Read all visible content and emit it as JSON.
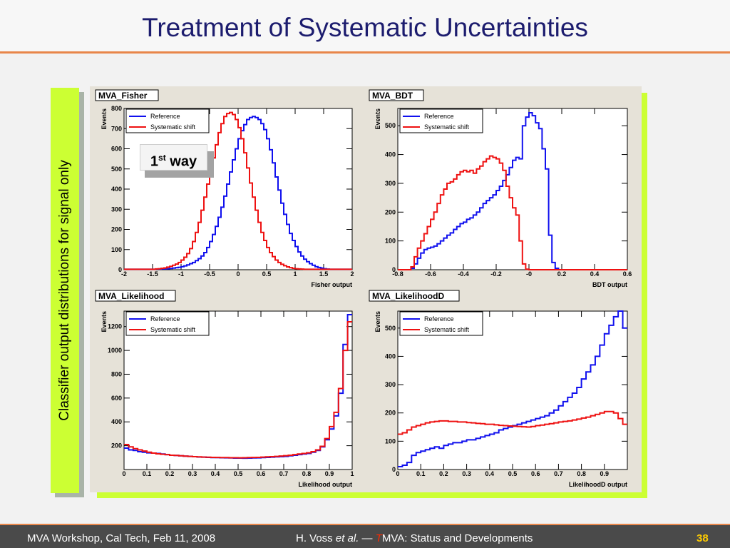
{
  "slide": {
    "title": "Treatment of Systematic Uncertainties",
    "side_label": "Classifier output distributions for signal only",
    "badge": {
      "main": "1",
      "sup": "st",
      "rest": " way"
    }
  },
  "footer": {
    "left": "MVA Workshop, Cal Tech, Feb 11, 2008",
    "middle_a": "H. Voss ",
    "middle_etal": "et al.",
    "middle_b": " — ",
    "middle_t": "T",
    "middle_c": "MVA: Status and Developments",
    "page": "38"
  },
  "colors": {
    "reference": "#1010ee",
    "shift": "#ee1111",
    "accent": "#e8864a",
    "banner": "#ccff33"
  },
  "chart_data": [
    {
      "type": "line",
      "title": "MVA_Fisher",
      "xlabel": "Fisher output",
      "ylabel": "Events",
      "xlim": [
        -2,
        2
      ],
      "ylim": [
        0,
        800
      ],
      "xticks": [
        -2,
        -1.5,
        -1,
        -0.5,
        0,
        0.5,
        1,
        1.5,
        2
      ],
      "xtick_labels": [
        "-2",
        "-1.5",
        "-1",
        "-0.5",
        "0",
        "0.5",
        "1",
        "1.5",
        "2"
      ],
      "yticks": [
        0,
        100,
        200,
        300,
        400,
        500,
        600,
        700,
        800
      ],
      "ytick_labels": [
        "0",
        "100",
        "200",
        "300",
        "400",
        "500",
        "600",
        "700",
        "800"
      ],
      "legend": [
        "Reference",
        "Systematic shift"
      ],
      "x_start": -2.0,
      "bin_width": 0.05,
      "series": [
        {
          "name": "Reference",
          "values": [
            2,
            2,
            2,
            2,
            2,
            2,
            2,
            2,
            2,
            2,
            2,
            3,
            3,
            4,
            4,
            5,
            6,
            8,
            10,
            12,
            15,
            19,
            24,
            30,
            36,
            45,
            55,
            68,
            85,
            110,
            140,
            175,
            215,
            260,
            310,
            365,
            425,
            485,
            545,
            600,
            650,
            690,
            720,
            745,
            755,
            760,
            755,
            745,
            725,
            695,
            650,
            595,
            530,
            460,
            395,
            330,
            275,
            225,
            180,
            145,
            115,
            88,
            68,
            52,
            40,
            30,
            22,
            15,
            11,
            8,
            5,
            3,
            2,
            2,
            2,
            2,
            2,
            2,
            2,
            2
          ]
        },
        {
          "name": "Systematic shift",
          "values": [
            2,
            2,
            2,
            2,
            2,
            2,
            2,
            2,
            2,
            2,
            2,
            4,
            5,
            7,
            9,
            13,
            17,
            22,
            28,
            36,
            48,
            62,
            80,
            105,
            140,
            185,
            235,
            295,
            360,
            425,
            490,
            555,
            620,
            680,
            725,
            760,
            775,
            780,
            770,
            745,
            705,
            650,
            580,
            505,
            430,
            360,
            295,
            235,
            185,
            145,
            110,
            85,
            65,
            48,
            36,
            27,
            20,
            14,
            10,
            7,
            5,
            4,
            3,
            2,
            2,
            2,
            2,
            2,
            2,
            2,
            2,
            2,
            2,
            2,
            2,
            2,
            2,
            2,
            2,
            2
          ]
        }
      ],
      "annotation_ticks": []
    },
    {
      "type": "line",
      "title": "MVA_BDT",
      "xlabel": "BDT output",
      "ylabel": "Events",
      "xlim": [
        -0.8,
        0.6
      ],
      "ylim": [
        0,
        560
      ],
      "xticks": [
        -0.8,
        -0.6,
        -0.4,
        -0.2,
        0,
        0.2,
        0.4,
        0.6
      ],
      "xtick_labels": [
        "-0.8",
        "-0.6",
        "-0.4",
        "-0.2",
        "-0",
        "0.2",
        "0.4",
        "0.6"
      ],
      "yticks": [
        0,
        100,
        200,
        300,
        400,
        500
      ],
      "ytick_labels": [
        "0",
        "100",
        "200",
        "300",
        "400",
        "500"
      ],
      "legend": [
        "Reference",
        "Systematic shift"
      ],
      "x_start": -0.8,
      "bin_width": 0.02,
      "series": [
        {
          "name": "Reference",
          "values": [
            0,
            0,
            0,
            0,
            5,
            20,
            40,
            58,
            70,
            75,
            78,
            82,
            90,
            100,
            110,
            120,
            128,
            140,
            150,
            160,
            165,
            175,
            180,
            190,
            200,
            215,
            230,
            240,
            250,
            260,
            275,
            290,
            310,
            330,
            355,
            380,
            390,
            385,
            500,
            530,
            545,
            535,
            510,
            490,
            420,
            350,
            120,
            25,
            5,
            0,
            0,
            0,
            0,
            0,
            0,
            0,
            0,
            0,
            0,
            0,
            0,
            0,
            0,
            0,
            0,
            0,
            0,
            0,
            0,
            0
          ]
        },
        {
          "name": "Systematic shift",
          "values": [
            0,
            0,
            0,
            0,
            10,
            45,
            75,
            100,
            125,
            150,
            175,
            200,
            230,
            260,
            280,
            300,
            305,
            315,
            330,
            340,
            345,
            340,
            345,
            335,
            350,
            360,
            375,
            385,
            395,
            390,
            385,
            370,
            345,
            290,
            250,
            215,
            190,
            100,
            20,
            2,
            0,
            0,
            0,
            0,
            0,
            0,
            0,
            0,
            0,
            0,
            0,
            0,
            0,
            0,
            0,
            0,
            0,
            0,
            0,
            0,
            0,
            0,
            0,
            0,
            0,
            0,
            0,
            0,
            0,
            0
          ]
        }
      ],
      "annotation_ticks": []
    },
    {
      "type": "line",
      "title": "MVA_Likelihood",
      "xlabel": "Likelihood output",
      "ylabel": "Events",
      "xlim": [
        0,
        1
      ],
      "ylim": [
        0,
        1330
      ],
      "xticks": [
        0,
        0.1,
        0.2,
        0.3,
        0.4,
        0.5,
        0.6,
        0.7,
        0.8,
        0.9,
        1
      ],
      "xtick_labels": [
        "0",
        "0.1",
        "0.2",
        "0.3",
        "0.4",
        "0.5",
        "0.6",
        "0.7",
        "0.8",
        "0.9",
        "1"
      ],
      "yticks": [
        200,
        400,
        600,
        800,
        1000,
        1200
      ],
      "ytick_labels": [
        "200",
        "400",
        "600",
        "800",
        "1000",
        "1200"
      ],
      "legend": [
        "Reference",
        "Systematic shift"
      ],
      "x_start": 0,
      "bin_width": 0.02,
      "series": [
        {
          "name": "Reference",
          "values": [
            180,
            165,
            160,
            150,
            145,
            140,
            138,
            135,
            130,
            125,
            120,
            118,
            115,
            112,
            110,
            108,
            105,
            104,
            102,
            100,
            100,
            99,
            98,
            97,
            96,
            96,
            95,
            96,
            97,
            98,
            100,
            102,
            104,
            106,
            108,
            110,
            115,
            120,
            125,
            130,
            135,
            145,
            160,
            190,
            250,
            340,
            450,
            640,
            1050,
            1300
          ]
        },
        {
          "name": "Systematic shift",
          "values": [
            210,
            190,
            175,
            165,
            155,
            145,
            138,
            132,
            128,
            125,
            120,
            118,
            115,
            112,
            110,
            108,
            106,
            104,
            103,
            102,
            101,
            100,
            100,
            99,
            99,
            98,
            99,
            100,
            101,
            102,
            104,
            106,
            108,
            110,
            113,
            116,
            120,
            125,
            130,
            135,
            140,
            150,
            165,
            195,
            260,
            360,
            480,
            680,
            1000,
            1240
          ]
        }
      ],
      "annotation_ticks": []
    },
    {
      "type": "line",
      "title": "MVA_LikelihoodD",
      "xlabel": "LikelihoodD output",
      "ylabel": "Events",
      "xlim": [
        0,
        1
      ],
      "ylim": [
        0,
        560
      ],
      "xticks": [
        0,
        0.1,
        0.2,
        0.3,
        0.4,
        0.5,
        0.6,
        0.7,
        0.8,
        0.9
      ],
      "xtick_labels": [
        "0",
        "0.1",
        "0.2",
        "0.3",
        "0.4",
        "0.5",
        "0.6",
        "0.7",
        "0.8",
        "0.9"
      ],
      "yticks": [
        0,
        100,
        200,
        300,
        400,
        500
      ],
      "ytick_labels": [
        "0",
        "100",
        "200",
        "300",
        "400",
        "500"
      ],
      "legend": [
        "Reference",
        "Systematic shift"
      ],
      "x_start": 0,
      "bin_width": 0.02,
      "series": [
        {
          "name": "Reference",
          "values": [
            10,
            15,
            25,
            50,
            60,
            65,
            70,
            75,
            80,
            75,
            85,
            90,
            95,
            95,
            100,
            105,
            105,
            110,
            115,
            120,
            125,
            130,
            140,
            145,
            150,
            155,
            160,
            165,
            170,
            175,
            180,
            185,
            190,
            200,
            210,
            225,
            240,
            255,
            270,
            290,
            320,
            345,
            370,
            400,
            440,
            480,
            510,
            540,
            560,
            500
          ]
        },
        {
          "name": "Systematic shift",
          "values": [
            125,
            130,
            140,
            150,
            155,
            160,
            165,
            168,
            170,
            172,
            172,
            170,
            170,
            168,
            168,
            166,
            165,
            163,
            162,
            160,
            160,
            158,
            156,
            155,
            154,
            153,
            152,
            151,
            150,
            152,
            155,
            157,
            160,
            162,
            165,
            168,
            170,
            172,
            175,
            178,
            182,
            185,
            190,
            195,
            200,
            205,
            205,
            200,
            180,
            160
          ]
        }
      ],
      "annotation_ticks": []
    }
  ]
}
